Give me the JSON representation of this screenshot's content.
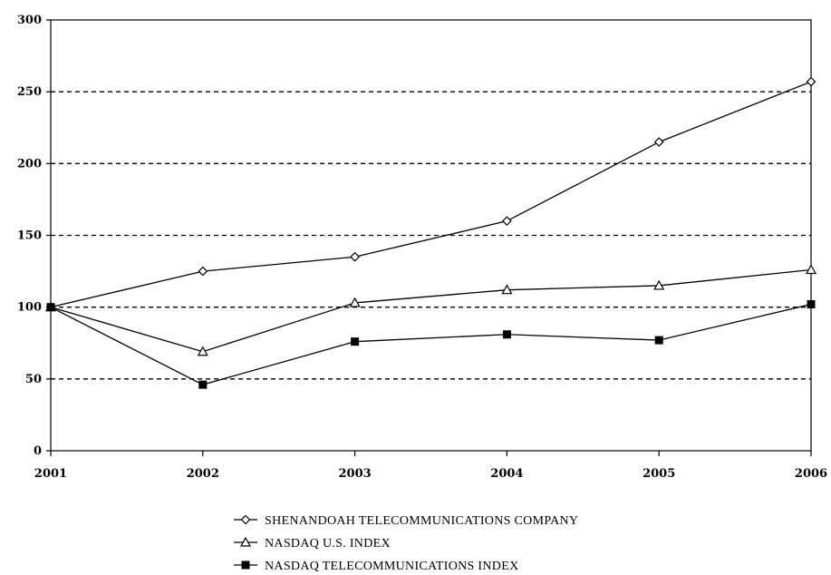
{
  "chart_data": {
    "type": "line",
    "x": [
      "2001",
      "2002",
      "2003",
      "2004",
      "2005",
      "2006"
    ],
    "ylim": [
      0,
      300
    ],
    "yticks": [
      "0",
      "50",
      "100",
      "150",
      "200",
      "250",
      "300"
    ],
    "grid": "horizontal dashed",
    "legend_position": "bottom",
    "series": [
      {
        "name": "SHENANDOAH TELECOMMUNICATIONS COMPANY",
        "marker": "diamond",
        "values": [
          100,
          125,
          135,
          160,
          215,
          257
        ]
      },
      {
        "name": "NASDAQ U.S. INDEX",
        "marker": "triangle",
        "values": [
          100,
          69,
          103,
          112,
          115,
          126
        ]
      },
      {
        "name": "NASDAQ TELECOMMUNICATIONS INDEX",
        "marker": "square",
        "values": [
          100,
          46,
          76,
          81,
          77,
          102
        ]
      }
    ]
  }
}
